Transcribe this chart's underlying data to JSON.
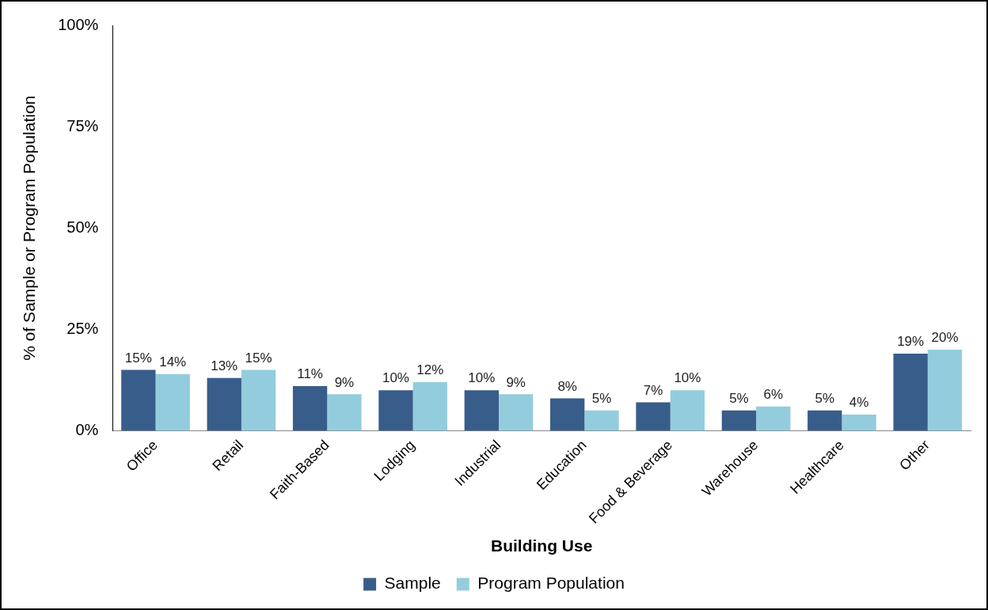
{
  "chart_data": {
    "type": "bar",
    "xlabel": "Building Use",
    "ylabel": "% of Sample or Program Population",
    "categories": [
      "Office",
      "Retail",
      "Faith-Based",
      "Lodging",
      "Industrial",
      "Education",
      "Food & Beverage",
      "Warehouse",
      "Healthcare",
      "Other"
    ],
    "series": [
      {
        "name": "Sample",
        "color": "#385d8a",
        "values": [
          15,
          13,
          11,
          10,
          10,
          8,
          7,
          5,
          5,
          19
        ],
        "value_labels": [
          "15%",
          "13%",
          "11%",
          "10%",
          "10%",
          "8%",
          "7%",
          "5%",
          "5%",
          "19%"
        ]
      },
      {
        "name": "Program Population",
        "color": "#93cddd",
        "values": [
          14,
          15,
          9,
          12,
          9,
          5,
          10,
          6,
          4,
          20
        ],
        "value_labels": [
          "14%",
          "15%",
          "9%",
          "12%",
          "9%",
          "5%",
          "10%",
          "6%",
          "4%",
          "20%"
        ]
      }
    ],
    "ylim": [
      0,
      100
    ],
    "yticks": [
      {
        "value": 0,
        "label": "0%"
      },
      {
        "value": 25,
        "label": "25%"
      },
      {
        "value": 50,
        "label": "50%"
      },
      {
        "value": 75,
        "label": "75%"
      },
      {
        "value": 100,
        "label": "100%"
      }
    ],
    "grid": false,
    "legend": "bottom"
  }
}
